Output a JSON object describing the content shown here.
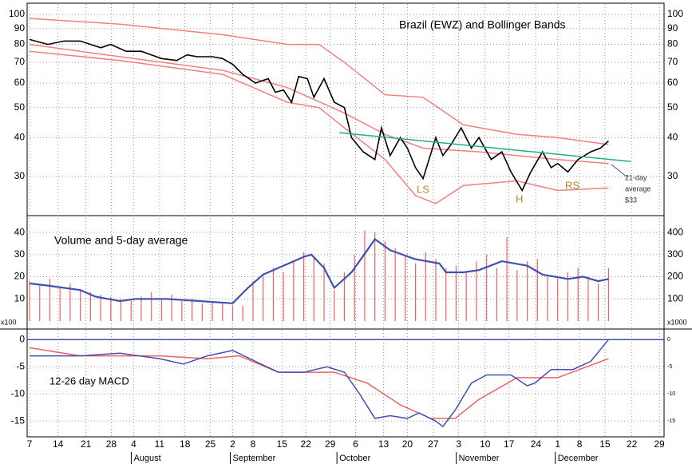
{
  "chart_data": [
    {
      "type": "line",
      "title": "Brazil (EWZ) and Bollinger Bands",
      "log_scale": true,
      "grid": true,
      "ylim": [
        22.4,
        108
      ],
      "yticks": [
        30,
        40,
        50,
        60,
        70,
        80,
        90,
        100
      ],
      "series": [
        {
          "color": "#f08080",
          "x": [
            0,
            17.8,
            38,
            50.8,
            57,
            62,
            70,
            77.5,
            85.4,
            96,
            104,
            114
          ],
          "values": [
            97,
            93,
            86,
            80,
            80,
            70,
            55,
            54,
            44,
            41,
            40,
            38
          ]
        },
        {
          "color": "#f08080",
          "x": [
            0,
            17.8,
            38,
            50.8,
            62,
            70,
            77.5,
            88.5,
            104,
            114
          ],
          "values": [
            80,
            73,
            66,
            58,
            48,
            41,
            37,
            36,
            34,
            33
          ]
        },
        {
          "color": "#f08080",
          "x": [
            0,
            17.8,
            38,
            50.8,
            57,
            62,
            70,
            76,
            80,
            85.4,
            96,
            104,
            114
          ],
          "values": [
            76,
            71,
            64,
            52,
            50,
            43,
            34,
            26,
            24.5,
            28,
            29,
            27,
            27.5
          ]
        },
        {
          "color": "#000000",
          "x": [
            0,
            3.6,
            6.8,
            10,
            12,
            14,
            16,
            19,
            22,
            24,
            26,
            29,
            31,
            33,
            36,
            38,
            40,
            42,
            44.5,
            47,
            48.4,
            50,
            51.6,
            53,
            54.7,
            56,
            58,
            60,
            62,
            63.4,
            65.7,
            68,
            69.3,
            71,
            73,
            74.4,
            76,
            77.5,
            80,
            81.4,
            83,
            85,
            87,
            88.5,
            90.9,
            93,
            94.8,
            97,
            98.7,
            101,
            102.7,
            104,
            106,
            108,
            110.5,
            112.4,
            114
          ],
          "values": [
            83,
            80,
            82,
            82,
            80,
            78,
            80,
            76,
            76,
            74,
            72,
            71,
            74,
            73,
            73,
            72,
            69,
            64,
            60,
            62,
            56,
            57,
            52,
            63,
            62,
            54,
            62,
            52,
            50,
            40,
            36,
            34,
            43,
            35,
            40,
            37,
            32,
            29.5,
            40,
            35,
            38,
            43,
            37,
            40,
            34,
            36,
            31,
            27,
            31,
            36,
            32,
            33,
            31,
            34,
            36,
            37,
            39
          ]
        },
        {
          "color": "#20b080",
          "x": [
            61,
            118.4
          ],
          "values": [
            41.5,
            33.5
          ]
        }
      ],
      "annotations": [
        "LS",
        "H",
        "RS",
        "21-day",
        "average",
        "$33"
      ]
    },
    {
      "type": "bar",
      "title": "Volume and 5-day average",
      "grid": true,
      "y_label": "x100",
      "y2_label": "x1000",
      "ylim": [
        0,
        44
      ],
      "yticks": [
        10,
        20,
        30,
        40
      ],
      "y2lim": [
        0,
        440
      ],
      "y2ticks": [
        100,
        200,
        300,
        400
      ],
      "bars": {
        "color": "#f06060",
        "x": [
          0,
          2,
          4,
          6,
          8,
          10,
          12,
          14,
          16,
          18,
          20,
          22,
          24,
          26,
          28,
          30,
          32,
          34,
          36,
          38,
          40,
          42,
          44,
          46,
          48,
          50,
          52,
          54,
          56,
          58,
          60,
          62,
          64,
          66,
          68,
          70,
          72,
          74,
          76,
          78,
          80,
          82,
          84,
          86,
          88,
          90,
          92,
          94,
          96,
          98,
          100,
          102,
          104,
          106,
          108,
          110,
          112,
          114
        ],
        "values": [
          18,
          16,
          19,
          15,
          17,
          14,
          13,
          12,
          11,
          10,
          9,
          11,
          13,
          10,
          12,
          9,
          10,
          8,
          9,
          8,
          7,
          7,
          18,
          20,
          24,
          22,
          27,
          31,
          29,
          26,
          14,
          22,
          30,
          41,
          40,
          36,
          33,
          30,
          26,
          31,
          28,
          24,
          25,
          22,
          27,
          30,
          24,
          38,
          23,
          27,
          28,
          20,
          19,
          22,
          24,
          20,
          17,
          24
        ]
      },
      "line": {
        "color": "#4050b0",
        "x": [
          0,
          3.6,
          10,
          13,
          17.8,
          21,
          27,
          33.5,
          40,
          43,
          46,
          50,
          54,
          55.5,
          58,
          60,
          63.4,
          66.5,
          68,
          71,
          75.9,
          80.7,
          82,
          85.4,
          88.5,
          93,
          98,
          101,
          106,
          109,
          112,
          114
        ],
        "values": [
          17,
          16,
          14,
          11,
          9,
          10,
          10,
          9,
          8,
          15,
          21,
          25,
          29,
          30,
          24,
          15,
          22,
          32,
          37,
          32,
          28,
          26,
          22,
          22,
          23,
          27,
          25,
          21,
          19,
          20,
          18,
          19
        ]
      }
    },
    {
      "type": "line",
      "title": "12-26 day MACD",
      "grid": true,
      "ylim": [
        -17.9,
        1.8
      ],
      "yticks": [
        0,
        -5,
        -10,
        -15
      ],
      "xlim": [
        0,
        124
      ],
      "xticks": [
        {
          "value": 0,
          "label": "7"
        },
        {
          "value": 5.6,
          "label": "14"
        },
        {
          "value": 11.1,
          "label": "21"
        },
        {
          "value": 16.1,
          "label": "28"
        },
        {
          "value": 20.5,
          "label": "4"
        },
        {
          "value": 25.6,
          "label": "11"
        },
        {
          "value": 30.6,
          "label": "18"
        },
        {
          "value": 35.6,
          "label": "25"
        },
        {
          "value": 40,
          "label": "2"
        },
        {
          "value": 44,
          "label": "8"
        },
        {
          "value": 49.7,
          "label": "15"
        },
        {
          "value": 54.4,
          "label": "22"
        },
        {
          "value": 59.2,
          "label": "29"
        },
        {
          "value": 64.2,
          "label": "6"
        },
        {
          "value": 69.7,
          "label": "13"
        },
        {
          "value": 74.4,
          "label": "20"
        },
        {
          "value": 79.5,
          "label": "27"
        },
        {
          "value": 84.5,
          "label": "3"
        },
        {
          "value": 89.7,
          "label": "10"
        },
        {
          "value": 94.4,
          "label": "17"
        },
        {
          "value": 99.7,
          "label": "24"
        },
        {
          "value": 104,
          "label": "1"
        },
        {
          "value": 108.3,
          "label": "8"
        },
        {
          "value": 113.3,
          "label": "15"
        },
        {
          "value": 118.6,
          "label": "22"
        },
        {
          "value": 124,
          "label": "29"
        }
      ],
      "months": [
        {
          "value": 20.5,
          "label": "August"
        },
        {
          "value": 40,
          "label": "September"
        },
        {
          "value": 61,
          "label": "October"
        },
        {
          "value": 84.5,
          "label": "November"
        },
        {
          "value": 104,
          "label": "December"
        }
      ],
      "series": [
        {
          "color": "#f06060",
          "x": [
            0,
            10,
            25.6,
            35,
            41.3,
            49,
            60,
            66.5,
            73,
            79,
            83.8,
            88.5,
            96,
            104,
            114
          ],
          "values": [
            -1.5,
            -3,
            -3,
            -3.5,
            -3,
            -6,
            -6,
            -8,
            -12,
            -14.5,
            -14.5,
            -11,
            -7,
            -7,
            -3.5
          ]
        },
        {
          "color": "#4050b0",
          "x": [
            0,
            5.2,
            10,
            17.8,
            25.6,
            30.3,
            35,
            40,
            44.5,
            49,
            54,
            58.6,
            62,
            65,
            68,
            71,
            74.4,
            76.7,
            80,
            81.4,
            83.8,
            87,
            90,
            94.8,
            98,
            99.5,
            102.7,
            107,
            110.5,
            114
          ],
          "values": [
            -3,
            -3,
            -3,
            -2.5,
            -3.5,
            -4.5,
            -3,
            -2,
            -4,
            -6,
            -6,
            -5,
            -6,
            -10,
            -14.5,
            -14,
            -14.5,
            -13.5,
            -15,
            -16,
            -13,
            -8,
            -6.5,
            -6.5,
            -8.5,
            -8,
            -5.5,
            -5.5,
            -4,
            0
          ]
        }
      ]
    }
  ]
}
